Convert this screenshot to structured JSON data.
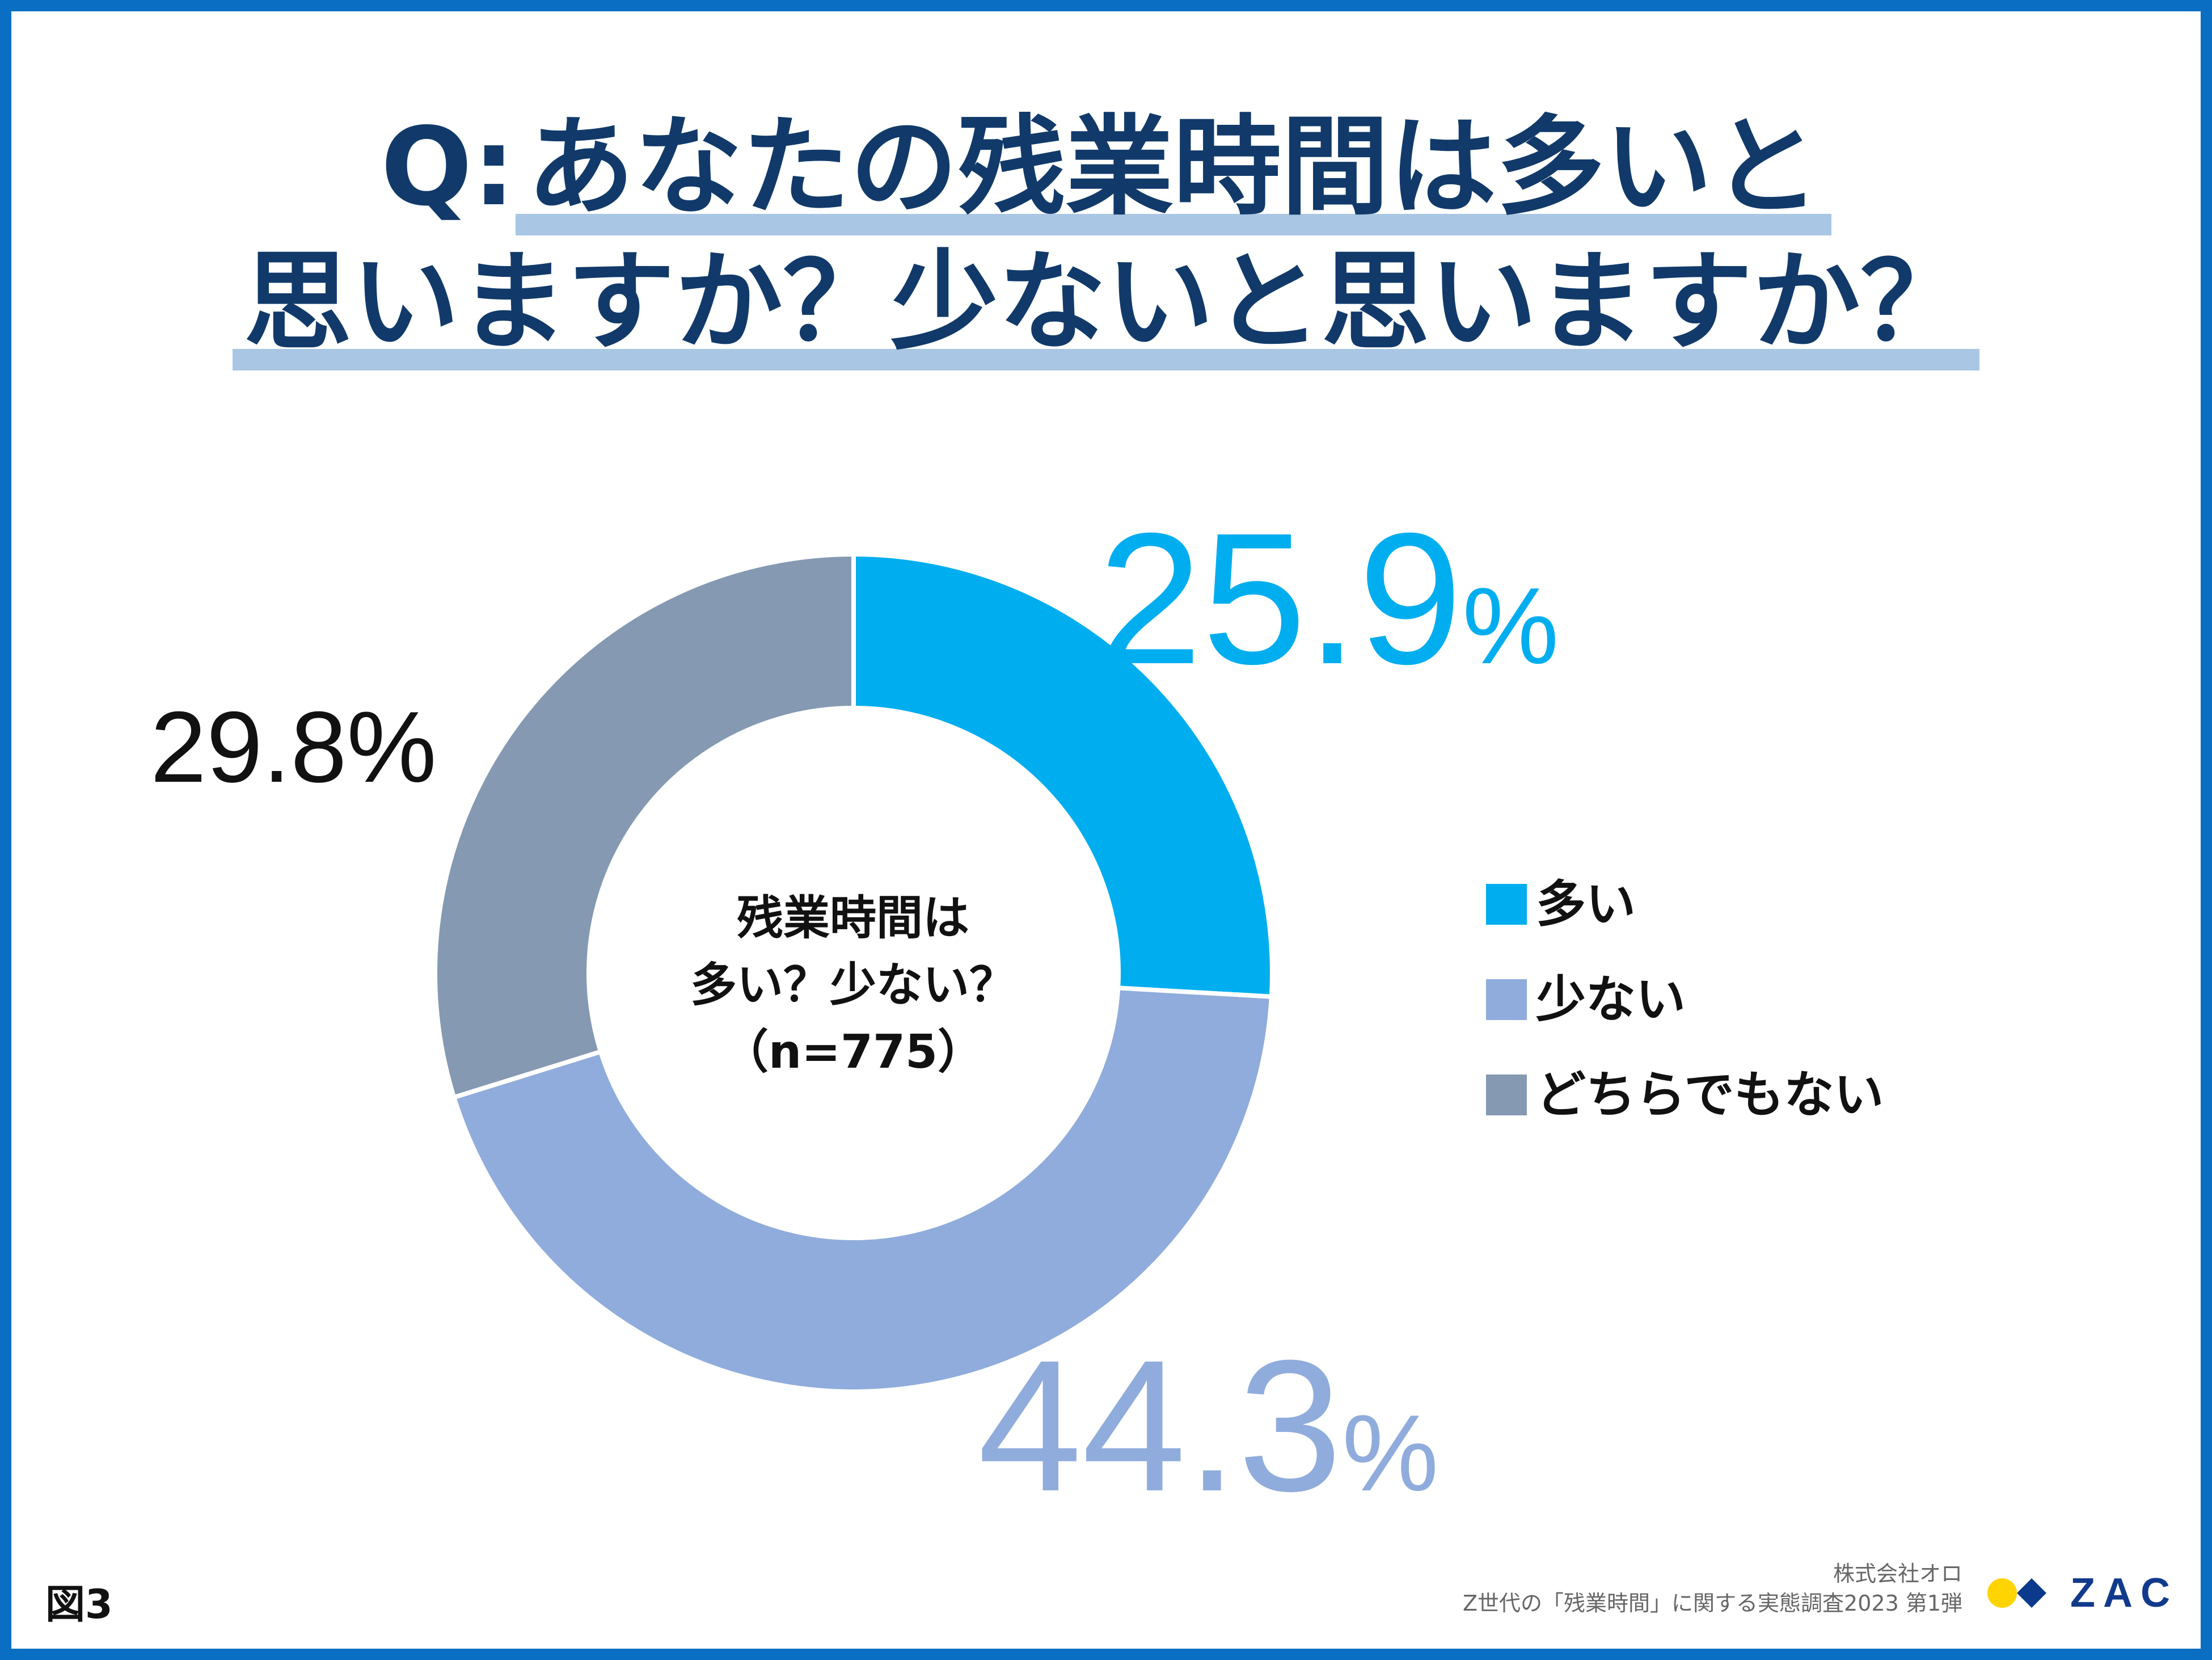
{
  "title": {
    "prefix": "Q:",
    "line1": "あなたの残業時間は多いと",
    "line2": "思いますか？少ないと思いますか？"
  },
  "center": {
    "line1": "残業時間は",
    "line2": "多い？少ない？",
    "line3": "（n=775）"
  },
  "legend": [
    {
      "label": "多い",
      "color": "#00aeef"
    },
    {
      "label": "少ない",
      "color": "#90acdc"
    },
    {
      "label": "どちらでもない",
      "color": "#8599b2"
    }
  ],
  "labels": {
    "many_value": "25.9",
    "many_unit": "%",
    "few_value": "44.3",
    "few_unit": "%",
    "neither_text": "29.8%"
  },
  "figure_label": "図3",
  "source": {
    "company": "株式会社オロ",
    "survey": "Z世代の「残業時間」に関する実態調査2023 第1弾"
  },
  "logo": {
    "text": "ZAC",
    "dot1_color": "#ffd400",
    "dot2_color": "#0b3a8c"
  },
  "chart_data": {
    "type": "pie",
    "style": "donut",
    "categories": [
      "多い",
      "少ない",
      "どちらでもない"
    ],
    "values": [
      25.9,
      44.3,
      29.8
    ],
    "colors": [
      "#00aeef",
      "#90acdc",
      "#8599b2"
    ],
    "value_label_colors": [
      "#00aeef",
      "#90acdc",
      "#111111"
    ],
    "unit": "%",
    "n": 775,
    "legend_position": "right",
    "start": "top, clockwise"
  }
}
